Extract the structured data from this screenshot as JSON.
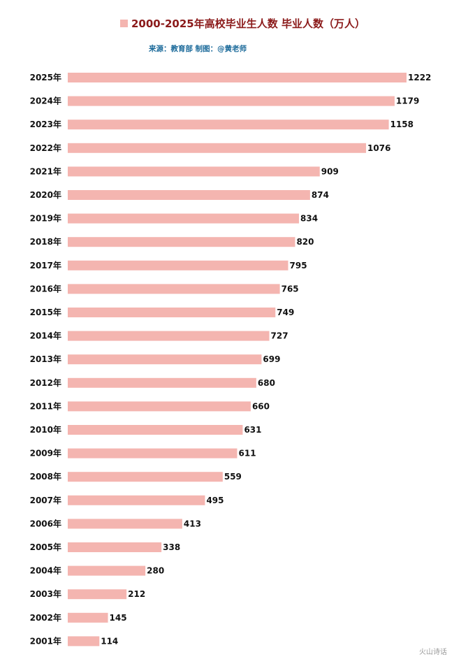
{
  "chart_data": {
    "type": "bar",
    "orientation": "horizontal",
    "title": "2000-2025年高校毕业生人数 毕业人数（万人）",
    "source": "来源：教育部  制图：@黄老师",
    "categories": [
      "2025年",
      "2024年",
      "2023年",
      "2022年",
      "2021年",
      "2020年",
      "2019年",
      "2018年",
      "2017年",
      "2016年",
      "2015年",
      "2014年",
      "2013年",
      "2012年",
      "2011年",
      "2010年",
      "2009年",
      "2008年",
      "2007年",
      "2006年",
      "2005年",
      "2004年",
      "2003年",
      "2002年",
      "2001年"
    ],
    "series": [
      {
        "name": "毕业人数（万人）",
        "values": [
          1222,
          1179,
          1158,
          1076,
          909,
          874,
          834,
          820,
          795,
          765,
          749,
          727,
          699,
          680,
          660,
          631,
          611,
          559,
          495,
          413,
          338,
          280,
          212,
          145,
          114
        ]
      }
    ],
    "colors": {
      "bar": "#f4b5b0",
      "legend_square": "#f4b5b0",
      "title": "#8b1a1a",
      "source": "#1b6a9a"
    },
    "grid": false,
    "legend": "top-center"
  },
  "watermark": "火山诗话"
}
